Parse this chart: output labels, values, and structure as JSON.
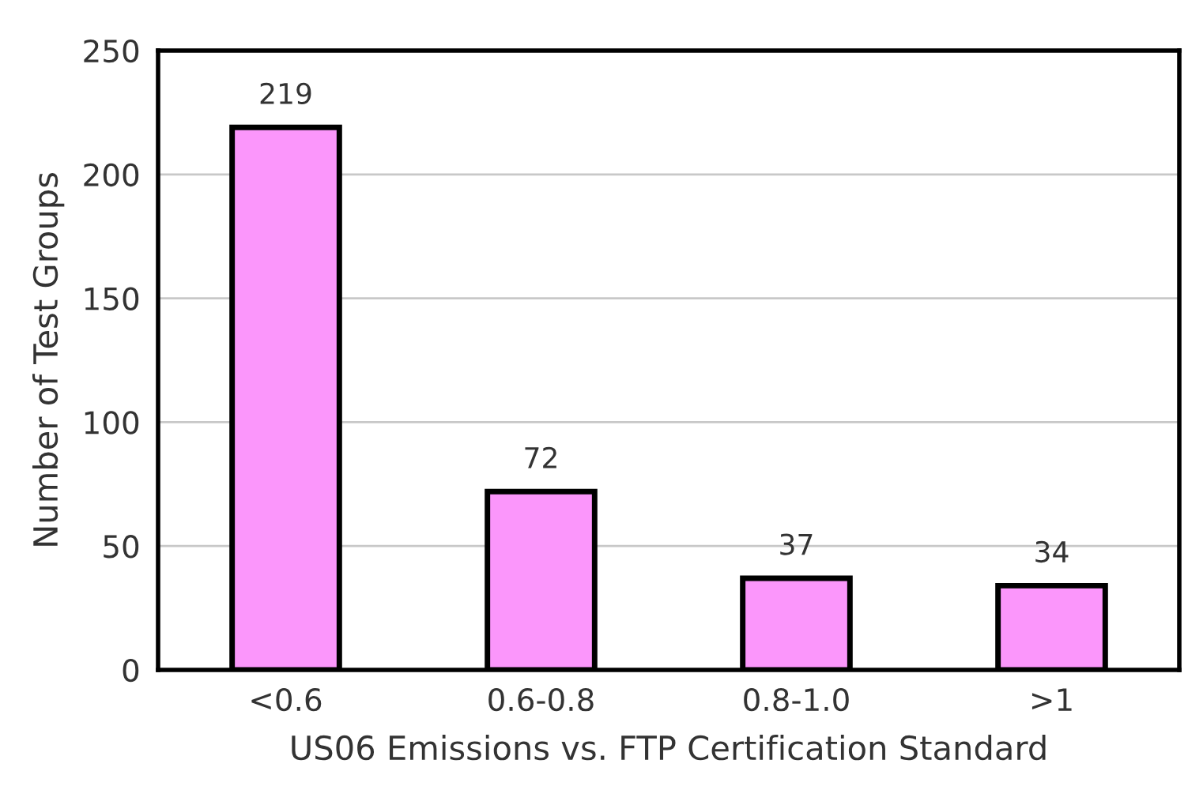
{
  "chart_data": {
    "type": "bar",
    "xlabel": "US06 Emissions vs. FTP Certification Standard",
    "ylabel": "Number of Test Groups",
    "categories": [
      "<0.6",
      "0.6-0.8",
      "0.8-1.0",
      ">1"
    ],
    "values": [
      219,
      72,
      37,
      34
    ],
    "color": "#fb96fb",
    "ylim": [
      0,
      250
    ],
    "yticks": [
      0,
      50,
      100,
      150,
      200,
      250
    ],
    "grid": "y",
    "data_labels": true
  }
}
